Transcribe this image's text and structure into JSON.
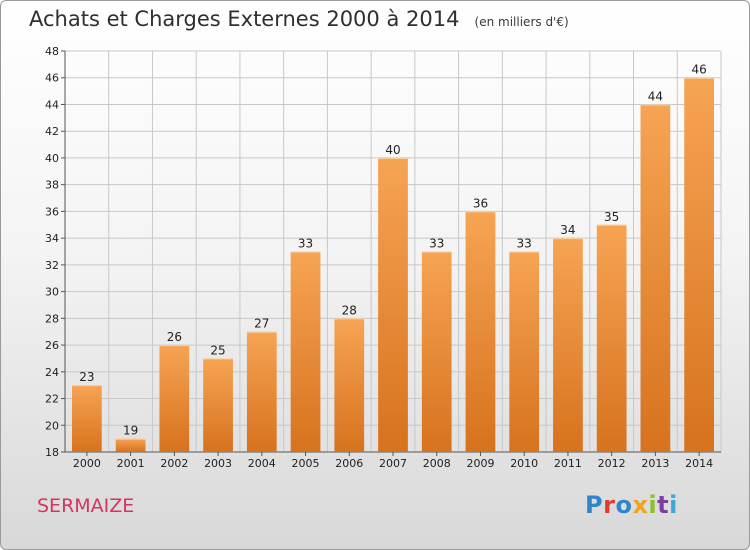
{
  "header": {
    "title": "Achats et Charges Externes 2000 à 2014",
    "subtitle": "(en milliers d'€)"
  },
  "footer": {
    "commune": "SERMAIZE",
    "brand": "Proxiti"
  },
  "colors": {
    "bar_light": "#f6a454",
    "bar_dark": "#d7721d",
    "grid": "#c8c8c8",
    "commune_text": "#d8325e",
    "brand_letters": [
      "#2e86c8",
      "#e23b2e",
      "#2e86c8",
      "#f3a21a",
      "#8fbf2b",
      "#7a3fa0",
      "#3aa8d8"
    ]
  },
  "chart_data": {
    "type": "bar",
    "categories": [
      "2000",
      "2001",
      "2002",
      "2003",
      "2004",
      "2005",
      "2006",
      "2007",
      "2008",
      "2009",
      "2010",
      "2011",
      "2012",
      "2013",
      "2014"
    ],
    "values": [
      23,
      19,
      26,
      25,
      27,
      33,
      28,
      40,
      33,
      36,
      33,
      34,
      35,
      44,
      46
    ],
    "title": "Achats et Charges Externes 2000 à 2014",
    "subtitle": "(en milliers d'€)",
    "xlabel": "",
    "ylabel": "",
    "ylim": [
      18,
      48
    ],
    "yticks": [
      18,
      20,
      22,
      24,
      26,
      28,
      30,
      32,
      34,
      36,
      38,
      40,
      42,
      44,
      46,
      48
    ],
    "grid": true,
    "legend": "none"
  }
}
